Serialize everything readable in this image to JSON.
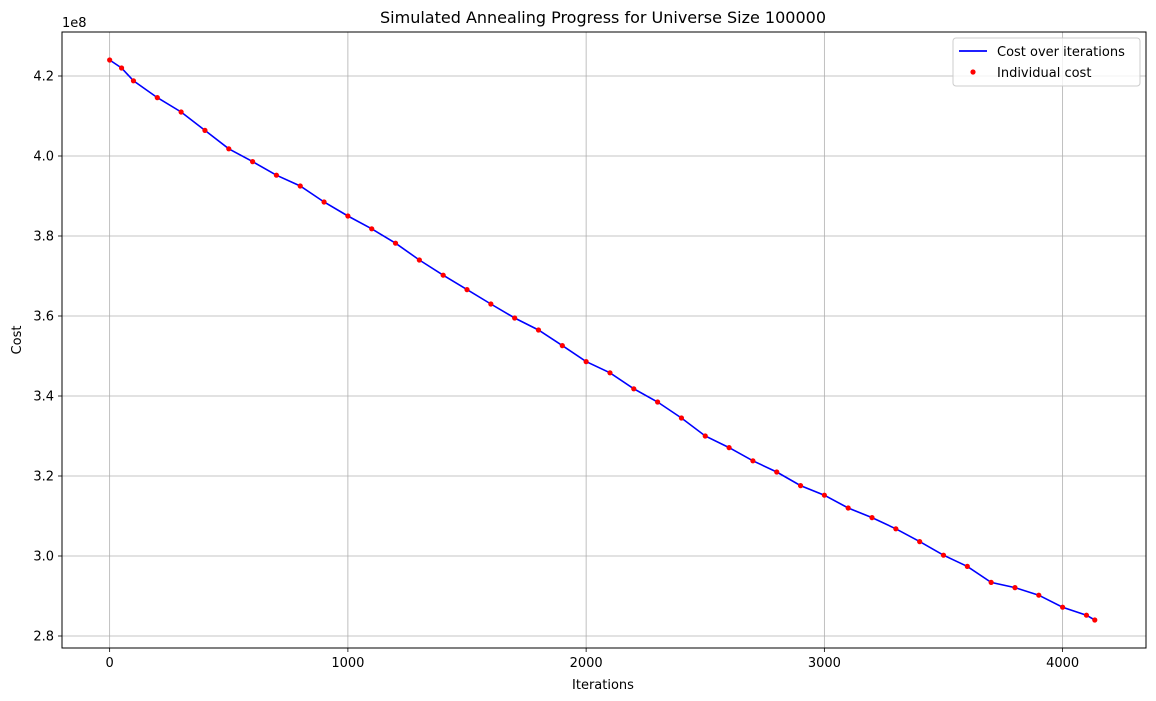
{
  "chart_data": {
    "type": "line",
    "title": "Simulated Annealing Progress for Universe Size 100000",
    "xlabel": "Iterations",
    "ylabel": "Cost",
    "y_offset_label": "1e8",
    "xlim": [
      -200,
      4350
    ],
    "ylim": [
      277000000.0,
      431000000.0
    ],
    "xticks": [
      0,
      1000,
      2000,
      3000,
      4000
    ],
    "xtick_labels": [
      "0",
      "1000",
      "2000",
      "3000",
      "4000"
    ],
    "yticks": [
      280000000.0,
      300000000.0,
      320000000.0,
      340000000.0,
      360000000.0,
      380000000.0,
      400000000.0,
      420000000.0
    ],
    "ytick_labels": [
      "2.8",
      "3.0",
      "3.2",
      "3.4",
      "3.6",
      "3.8",
      "4.0",
      "4.2"
    ],
    "grid": true,
    "legend_position": "top-right",
    "series": [
      {
        "name": "Cost over iterations",
        "kind": "line",
        "color": "#0000ff",
        "x": [
          0,
          50,
          100,
          200,
          300,
          400,
          500,
          600,
          700,
          800,
          900,
          1000,
          1100,
          1200,
          1300,
          1400,
          1500,
          1600,
          1700,
          1800,
          1900,
          2000,
          2100,
          2200,
          2300,
          2400,
          2500,
          2600,
          2700,
          2800,
          2900,
          3000,
          3100,
          3200,
          3300,
          3400,
          3500,
          3600,
          3700,
          3800,
          3900,
          4000,
          4100,
          4135
        ],
        "y": [
          424000000,
          422000000,
          418800000,
          414600000,
          411000000,
          406400000,
          401800000,
          398600000,
          395200000,
          392500000,
          388500000,
          385000000,
          381800000,
          378200000,
          374000000,
          370200000,
          366600000,
          363000000,
          359500000,
          356500000,
          352600000,
          348600000,
          345800000,
          341800000,
          338500000,
          334500000,
          330000000,
          327100000,
          323800000,
          321000000,
          317600000,
          315200000,
          312000000,
          309600000,
          306800000,
          303600000,
          300200000,
          297400000,
          293400000,
          292100000,
          290200000,
          287200000,
          285200000,
          284000000
        ]
      },
      {
        "name": "Individual cost",
        "kind": "scatter",
        "color": "#ff0000"
      }
    ]
  }
}
